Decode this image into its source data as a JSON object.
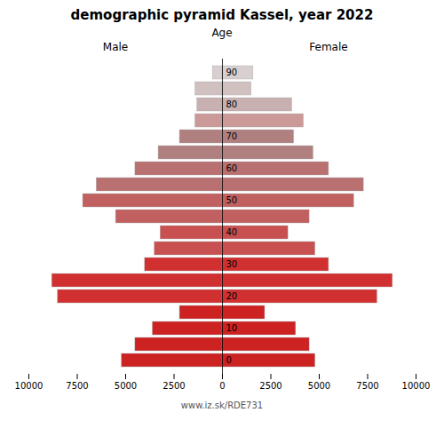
{
  "chart_data": {
    "type": "bar",
    "orientation": "horizontal",
    "title": "demographic pyramid Kassel, year 2022",
    "ylabel": "Age",
    "annotations": [
      "www.iz.sk/RDE731"
    ],
    "categories": [
      "0",
      null,
      "10",
      null,
      "20",
      null,
      "30",
      null,
      "40",
      null,
      "50",
      null,
      "60",
      null,
      "70",
      null,
      "80",
      null,
      "90"
    ],
    "series": [
      {
        "name": "Male",
        "values": [
          5200,
          4500,
          3600,
          2200,
          8500,
          8800,
          4000,
          3500,
          3200,
          5500,
          7200,
          6500,
          4500,
          3300,
          2200,
          1400,
          1300,
          1400,
          500
        ],
        "colors": [
          "#cc2222",
          "#cc2222",
          "#cc2222",
          "#cc2222",
          "#d03030",
          "#d03030",
          "#d03030",
          "#c85050",
          "#c85050",
          "#c06060",
          "#c06060",
          "#b87070",
          "#b87070",
          "#b08080",
          "#b08080",
          "#cc9999",
          "#c8b0b0",
          "#d0c0c0",
          "#d8d0d0"
        ]
      },
      {
        "name": "Female",
        "values": [
          4800,
          4500,
          3800,
          2200,
          8000,
          8800,
          5500,
          4800,
          3400,
          4500,
          6800,
          7300,
          5500,
          4700,
          3700,
          4200,
          3600,
          1500,
          1600
        ],
        "colors": [
          "#cc2222",
          "#cc2222",
          "#cc2222",
          "#cc2222",
          "#d03030",
          "#d03030",
          "#d03030",
          "#c85050",
          "#c85050",
          "#c06060",
          "#c06060",
          "#b87070",
          "#b87070",
          "#b08080",
          "#b08080",
          "#cc9999",
          "#c8b0b0",
          "#d0c0c0",
          "#d8d0d0"
        ]
      }
    ],
    "xlim": [
      0,
      10000
    ],
    "xticks": [
      0,
      2500,
      5000,
      7500,
      10000
    ],
    "grid": false
  }
}
